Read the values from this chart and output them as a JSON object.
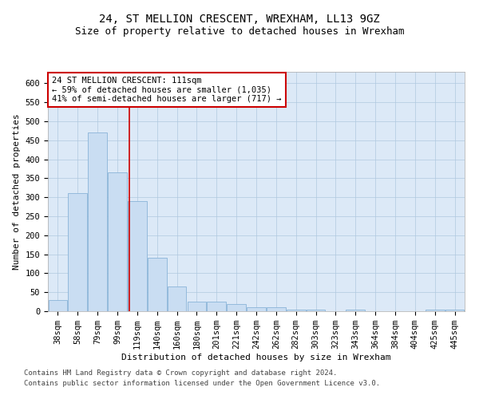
{
  "title": "24, ST MELLION CRESCENT, WREXHAM, LL13 9GZ",
  "subtitle": "Size of property relative to detached houses in Wrexham",
  "xlabel": "Distribution of detached houses by size in Wrexham",
  "ylabel": "Number of detached properties",
  "categories": [
    "38sqm",
    "58sqm",
    "79sqm",
    "99sqm",
    "119sqm",
    "140sqm",
    "160sqm",
    "180sqm",
    "201sqm",
    "221sqm",
    "242sqm",
    "262sqm",
    "282sqm",
    "303sqm",
    "323sqm",
    "343sqm",
    "364sqm",
    "384sqm",
    "404sqm",
    "425sqm",
    "445sqm"
  ],
  "values": [
    30,
    310,
    470,
    365,
    290,
    140,
    65,
    25,
    25,
    18,
    10,
    10,
    5,
    5,
    0,
    5,
    0,
    0,
    0,
    5,
    5
  ],
  "bar_color": "#c9ddf2",
  "bar_edge_color": "#8ab4d8",
  "vline_x": 3.62,
  "vline_color": "#cc0000",
  "annotation_text": "24 ST MELLION CRESCENT: 111sqm\n← 59% of detached houses are smaller (1,035)\n41% of semi-detached houses are larger (717) →",
  "annotation_box_color": "#ffffff",
  "annotation_box_edge_color": "#cc0000",
  "ylim": [
    0,
    630
  ],
  "yticks": [
    0,
    50,
    100,
    150,
    200,
    250,
    300,
    350,
    400,
    450,
    500,
    550,
    600
  ],
  "plot_bg_color": "#dce9f7",
  "footer_line1": "Contains HM Land Registry data © Crown copyright and database right 2024.",
  "footer_line2": "Contains public sector information licensed under the Open Government Licence v3.0.",
  "title_fontsize": 10,
  "subtitle_fontsize": 9,
  "xlabel_fontsize": 8,
  "ylabel_fontsize": 8,
  "annotation_fontsize": 7.5,
  "footer_fontsize": 6.5,
  "tick_fontsize": 7.5
}
